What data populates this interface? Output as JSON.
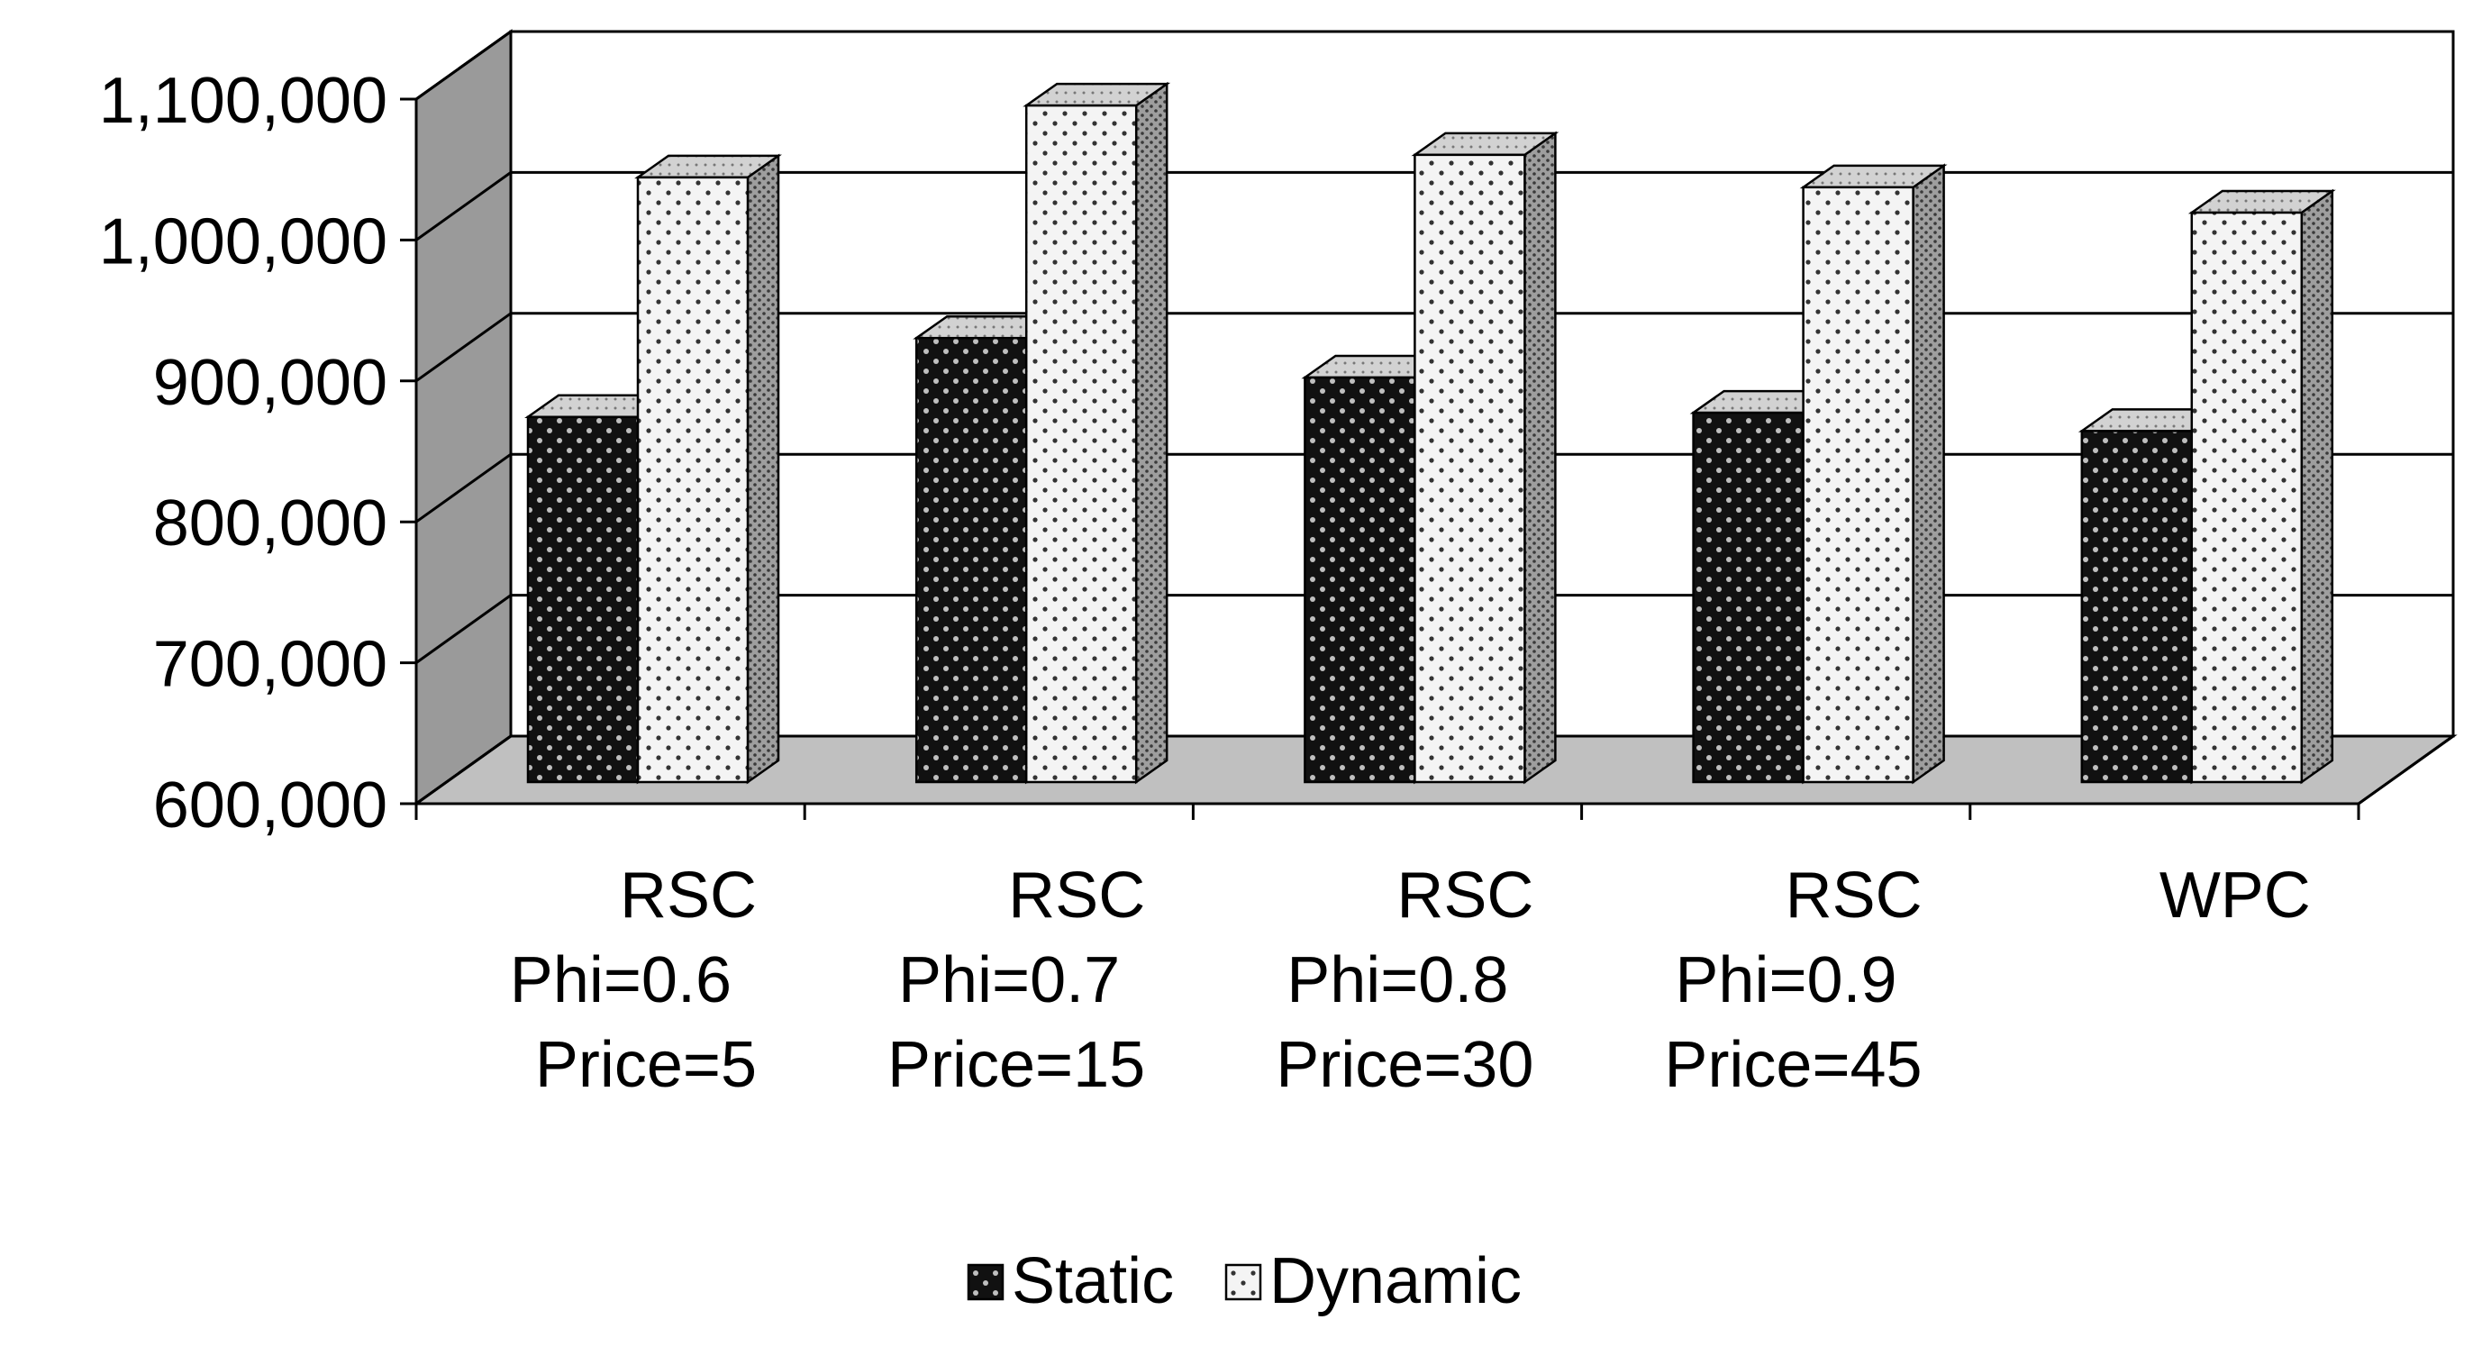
{
  "chart_data": {
    "type": "bar",
    "categories": [
      [
        "RSC",
        "Phi=0.6",
        "Price=5"
      ],
      [
        "RSC",
        "Phi=0.7",
        "Price=15"
      ],
      [
        "RSC",
        "Phi=0.8",
        "Price=30"
      ],
      [
        "RSC",
        "Phi=0.9",
        "Price=45"
      ],
      [
        "WPC"
      ]
    ],
    "series": [
      {
        "name": "Static",
        "values": [
          877000,
          933000,
          905000,
          880000,
          867000
        ]
      },
      {
        "name": "Dynamic",
        "values": [
          1047000,
          1098000,
          1063000,
          1040000,
          1022000
        ]
      }
    ],
    "ylim": [
      600000,
      1100000
    ],
    "yticks": [
      "600,000",
      "700,000",
      "800,000",
      "900,000",
      "1,000,000",
      "1,100,000"
    ],
    "title": "",
    "xlabel": "",
    "ylabel": "",
    "legend_position": "bottom-center",
    "grid": true,
    "colors": {
      "static_fill": "#111111",
      "static_dot": "#bfbfbf",
      "dynamic_fill": "#f2f2f2",
      "dynamic_dot": "#333333",
      "floor": "#c0c0c0",
      "back_wall_side": "#9a9a9a",
      "bar_side": "#9e9e9e",
      "bar_top": "#cfcfcf"
    }
  }
}
